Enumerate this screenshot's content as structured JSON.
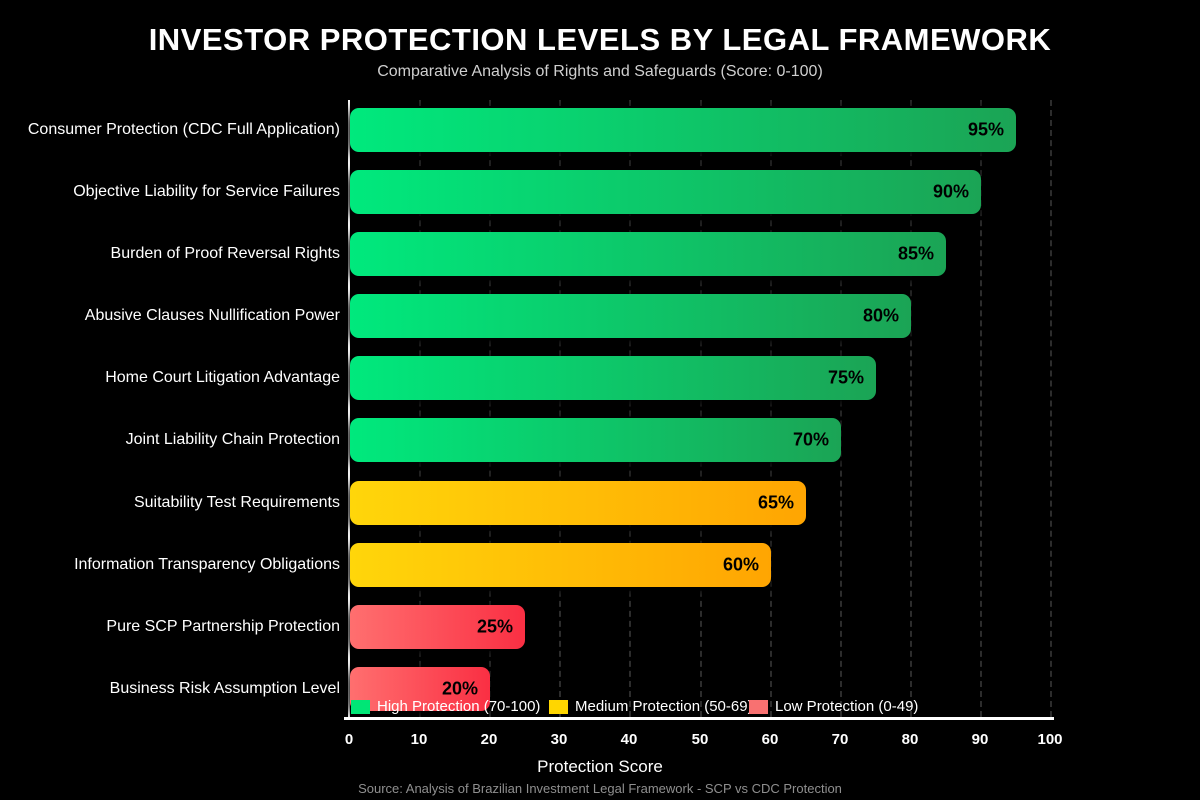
{
  "chart_data": {
    "type": "bar",
    "orientation": "horizontal",
    "title": "INVESTOR PROTECTION LEVELS BY LEGAL FRAMEWORK",
    "subtitle": "Comparative Analysis of Rights and Safeguards (Score: 0-100)",
    "categories": [
      "Consumer Protection (CDC Full Application)",
      "Objective Liability for Service Failures",
      "Burden of Proof Reversal Rights",
      "Abusive Clauses Nullification Power",
      "Home Court Litigation Advantage",
      "Joint Liability Chain Protection",
      "Suitability Test Requirements",
      "Information Transparency Obligations",
      "Pure SCP Partnership Protection",
      "Business Risk Assumption Level"
    ],
    "values": [
      95,
      90,
      85,
      80,
      75,
      70,
      65,
      60,
      25,
      20
    ],
    "value_labels": [
      "95%",
      "90%",
      "85%",
      "80%",
      "75%",
      "70%",
      "65%",
      "60%",
      "25%",
      "20%"
    ],
    "tiers": [
      "high",
      "high",
      "high",
      "high",
      "high",
      "high",
      "medium",
      "medium",
      "low",
      "low"
    ],
    "xlabel": "Protection Score",
    "xlim": [
      0,
      100
    ],
    "xticks": [
      0,
      10,
      20,
      30,
      40,
      50,
      60,
      70,
      80,
      90,
      100
    ],
    "grid": "vertical-dashed",
    "legend_position": "bottom-inside",
    "legend": [
      {
        "label": "High Protection (70-100)",
        "color": "#00e676"
      },
      {
        "label": "Medium Protection (50-69)",
        "color": "#ffd600"
      },
      {
        "label": "Low Protection (0-49)",
        "color": "#f87171"
      }
    ],
    "palette": {
      "high": {
        "start": "#00e97d",
        "end": "#1ba455"
      },
      "medium": {
        "start": "#ffd60a",
        "end": "#ffa502"
      },
      "low": {
        "start": "#ff6f6f",
        "end": "#fa2f43"
      }
    },
    "background": "#000000",
    "source": "Source: Analysis of Brazilian Investment Legal Framework - SCP vs CDC Protection"
  }
}
